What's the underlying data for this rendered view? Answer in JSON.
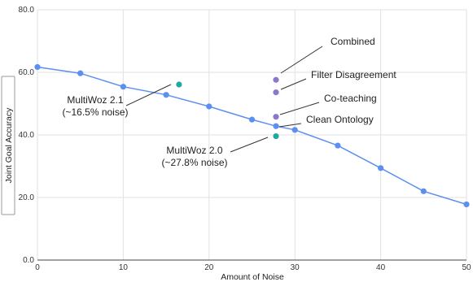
{
  "chart_data": {
    "type": "scatter",
    "title": "",
    "xlabel": "Amount of Noise",
    "ylabel": "Joint Goal Accuracy",
    "xlim": [
      0,
      50
    ],
    "ylim": [
      0,
      80
    ],
    "x_ticks": [
      0,
      10,
      20,
      30,
      40,
      50
    ],
    "y_ticks": [
      0,
      20,
      40,
      60,
      80
    ],
    "x_tick_labels": [
      "0",
      "10",
      "20",
      "30",
      "40",
      "50"
    ],
    "y_tick_labels": [
      "0.0",
      "20.0",
      "40.0",
      "60.0",
      "80.0"
    ],
    "grid": true,
    "legend": "none",
    "series": [
      {
        "style": "line-with-markers",
        "color": "#5b8ff0",
        "x": [
          0,
          5,
          10,
          15,
          20,
          25,
          27.8,
          30,
          35,
          40,
          45,
          50
        ],
        "y": [
          61.7,
          59.7,
          55.4,
          52.8,
          49.1,
          44.9,
          42.8,
          41.6,
          36.6,
          29.4,
          22.0,
          17.8
        ]
      },
      {
        "style": "markers",
        "color": "#1eaaa0",
        "x": [
          16.5,
          27.8
        ],
        "y": [
          56.1,
          39.6
        ]
      },
      {
        "style": "markers",
        "color": "#8b78cc",
        "x": [
          27.8,
          27.8,
          27.8
        ],
        "y": [
          57.6,
          53.6,
          45.8
        ]
      }
    ],
    "annotations": [
      {
        "lines": [
          "MultiWoz 2.1",
          "(~16.5% noise)"
        ]
      },
      {
        "lines": [
          "MultiWoz 2.0",
          "(~27.8% noise)"
        ]
      },
      {
        "lines": [
          "Combined"
        ]
      },
      {
        "lines": [
          "Filter Disagreement"
        ]
      },
      {
        "lines": [
          "Co-teaching"
        ]
      },
      {
        "lines": [
          "Clean Ontology"
        ]
      }
    ]
  }
}
